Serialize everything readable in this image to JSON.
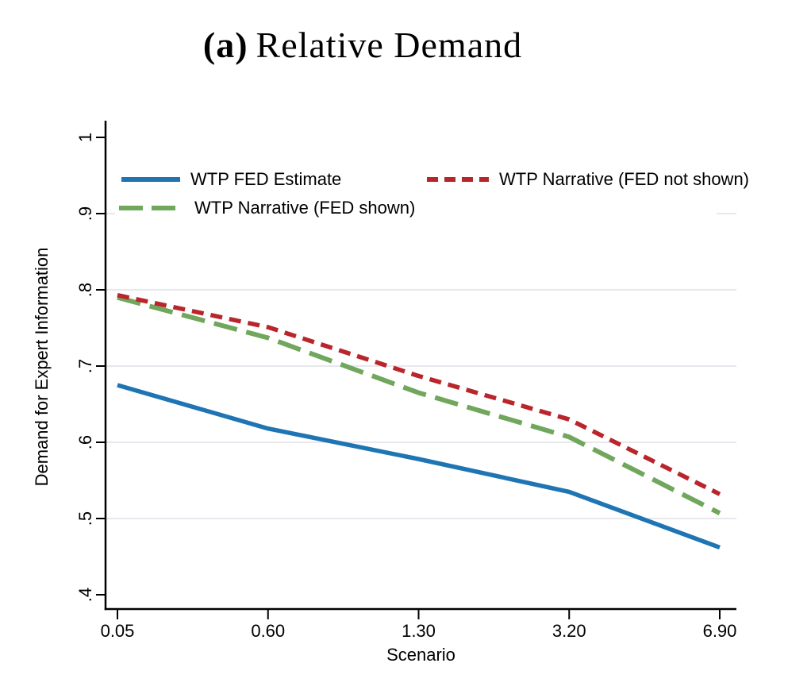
{
  "title": {
    "prefix": "(a)",
    "text": "Relative Demand"
  },
  "chart_data": {
    "type": "line",
    "title": "(a) Relative Demand",
    "xlabel": "Scenario",
    "ylabel": "Demand for Expert Information",
    "categories": [
      "0.05",
      "0.60",
      "1.30",
      "3.20",
      "6.90"
    ],
    "series": [
      {
        "name": "WTP FED Estimate",
        "color": "#1f75b4",
        "dash": "solid",
        "width": 5.5,
        "values": [
          0.675,
          0.618,
          0.578,
          0.535,
          0.462
        ]
      },
      {
        "name": "WTP Narrative (FED shown)",
        "color": "#70a75c",
        "dash": "long-dash",
        "width": 6.0,
        "values": [
          0.79,
          0.737,
          0.665,
          0.607,
          0.507
        ]
      },
      {
        "name": "WTP Narrative (FED not shown)",
        "color": "#b9252b",
        "dash": "short-dash",
        "width": 5.5,
        "values": [
          0.793,
          0.751,
          0.687,
          0.63,
          0.532
        ]
      }
    ],
    "y_ticks": [
      1,
      0.9,
      0.8,
      0.7,
      0.6,
      0.5,
      0.4
    ],
    "y_tick_labels": [
      "1",
      ".9",
      ".8",
      ".7",
      ".6",
      ".5",
      ".4"
    ],
    "ylim": [
      0.4,
      1.0
    ],
    "grid": "horizontal",
    "gridline_values": [
      0.9,
      0.8,
      0.7,
      0.6,
      0.5
    ],
    "legend_position": "top-inside",
    "colors": {
      "grid": "#e8e8ee",
      "axis": "#000000",
      "background": "#ffffff"
    }
  },
  "legend": {
    "items": [
      {
        "label": "WTP FED Estimate",
        "series": 0
      },
      {
        "label": "WTP Narrative (FED not shown)",
        "series": 2
      },
      {
        "label": "WTP Narrative (FED shown)",
        "series": 1
      }
    ]
  }
}
